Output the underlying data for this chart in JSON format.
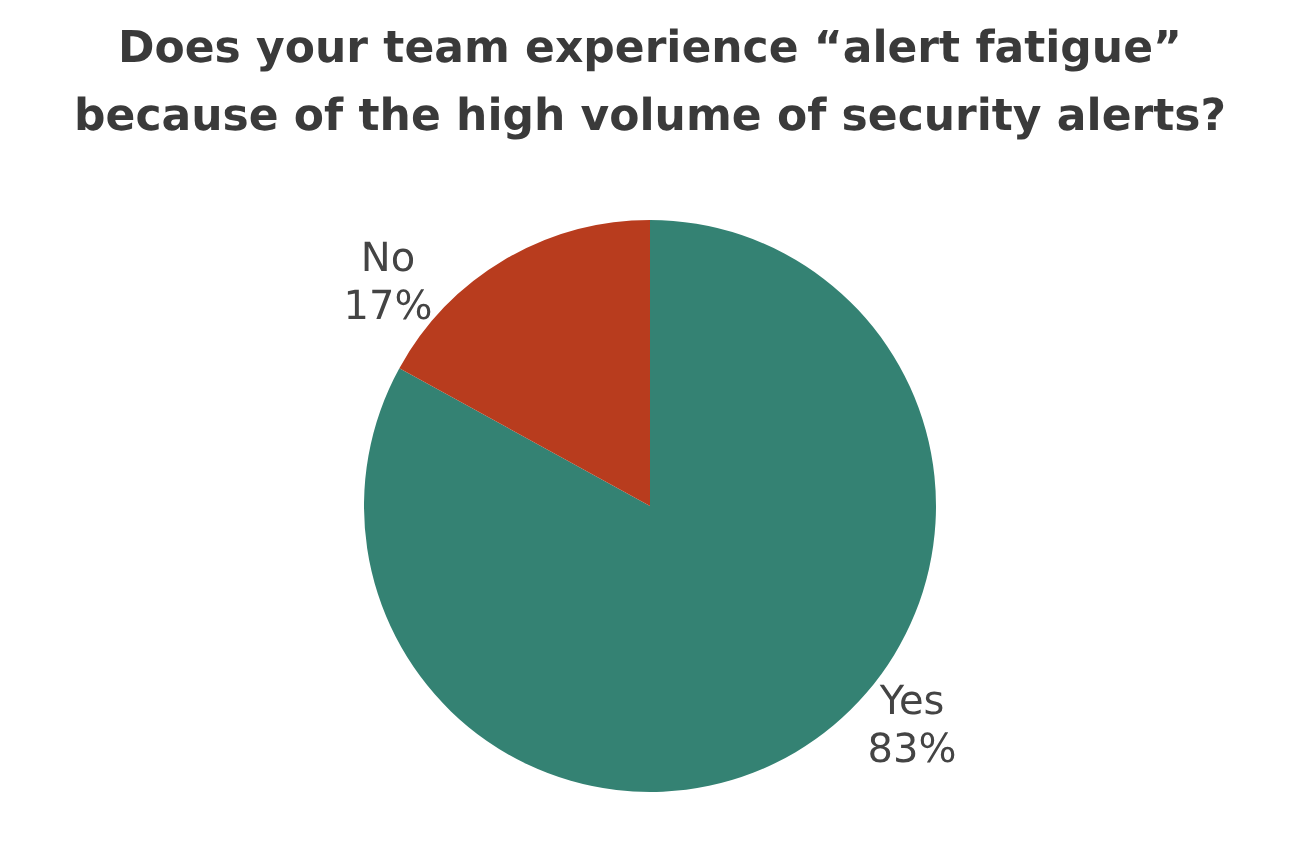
{
  "chart_data": {
    "type": "pie",
    "title": "Does your team experience “alert fatigue” because of the high volume of security alerts?",
    "categories": [
      "Yes",
      "No"
    ],
    "values": [
      83,
      17
    ],
    "value_labels": [
      "83%",
      "17%"
    ],
    "colors": [
      "#348273",
      "#b83c1e"
    ],
    "legend": false
  }
}
